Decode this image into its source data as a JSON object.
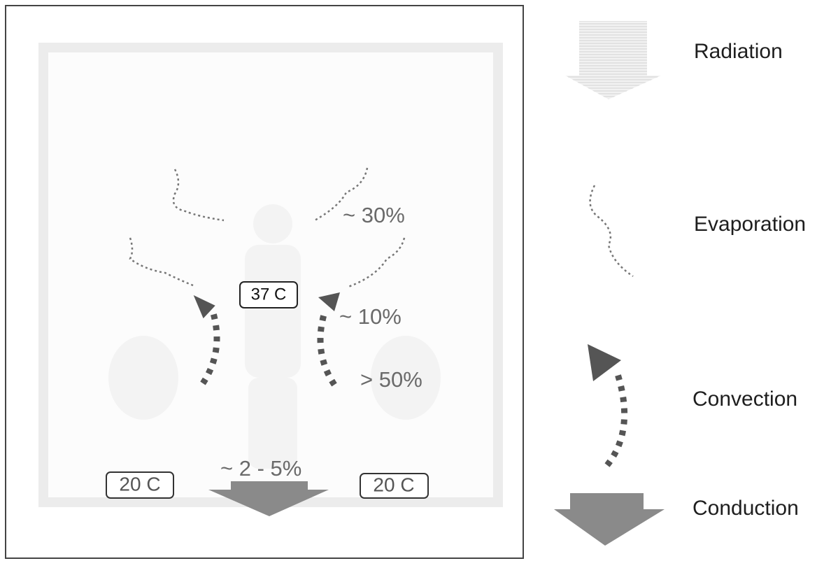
{
  "legend": [
    "Radiation",
    "Evaporation",
    "Convection",
    "Conduction"
  ],
  "annotations": [
    "~ 30%",
    "~ 10%",
    "> 50%",
    "~ 2 - 5%"
  ],
  "temperatures": {
    "body": "37 C",
    "left": "20 C",
    "right": "20 C"
  }
}
